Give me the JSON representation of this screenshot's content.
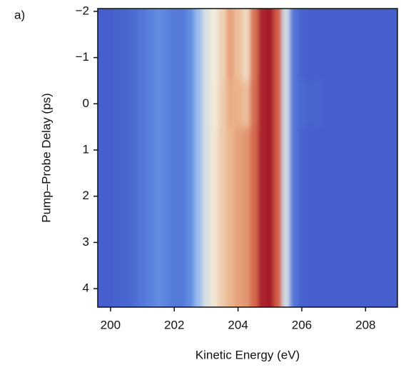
{
  "chart_data": {
    "type": "heatmap",
    "panel_label": "a)",
    "xlabel": "Kinetic Energy (eV)",
    "ylabel": "Pump–Probe Delay (ps)",
    "x": [
      199.75,
      200,
      200.25,
      200.5,
      200.75,
      201,
      201.25,
      201.5,
      201.75,
      202,
      202.25,
      202.5,
      202.75,
      203,
      203.25,
      203.5,
      203.75,
      204,
      204.25,
      204.5,
      204.75,
      205,
      205.25,
      205.5,
      205.75,
      206,
      206.25,
      206.5,
      206.75,
      207,
      207.25,
      207.5,
      207.75,
      208,
      208.25,
      208.5,
      208.75,
      209
    ],
    "y": [
      -2,
      -1,
      0,
      1,
      2,
      3,
      4
    ],
    "values": [
      [
        0.05,
        0.05,
        0.06,
        0.07,
        0.09,
        0.12,
        0.15,
        0.18,
        0.16,
        0.13,
        0.13,
        0.18,
        0.3,
        0.44,
        0.5,
        0.58,
        0.7,
        0.64,
        0.56,
        0.78,
        0.96,
        0.98,
        0.82,
        0.42,
        0.12,
        0.06,
        0.05,
        0.05,
        0.05,
        0.05,
        0.05,
        0.05,
        0.05,
        0.05,
        0.05,
        0.05,
        0.05,
        0.05
      ],
      [
        0.05,
        0.05,
        0.06,
        0.07,
        0.09,
        0.12,
        0.15,
        0.18,
        0.16,
        0.13,
        0.13,
        0.18,
        0.3,
        0.44,
        0.5,
        0.58,
        0.7,
        0.64,
        0.56,
        0.78,
        0.96,
        0.98,
        0.82,
        0.42,
        0.12,
        0.06,
        0.05,
        0.05,
        0.05,
        0.05,
        0.05,
        0.05,
        0.05,
        0.05,
        0.05,
        0.05,
        0.05,
        0.05
      ],
      [
        0.05,
        0.05,
        0.06,
        0.07,
        0.09,
        0.12,
        0.15,
        0.18,
        0.16,
        0.13,
        0.13,
        0.18,
        0.3,
        0.44,
        0.51,
        0.59,
        0.68,
        0.67,
        0.64,
        0.79,
        0.96,
        0.98,
        0.82,
        0.42,
        0.12,
        0.08,
        0.06,
        0.07,
        0.05,
        0.05,
        0.05,
        0.05,
        0.05,
        0.05,
        0.05,
        0.05,
        0.05,
        0.05
      ],
      [
        0.05,
        0.05,
        0.06,
        0.07,
        0.09,
        0.12,
        0.15,
        0.18,
        0.16,
        0.13,
        0.13,
        0.18,
        0.3,
        0.44,
        0.52,
        0.6,
        0.66,
        0.7,
        0.72,
        0.8,
        0.96,
        0.98,
        0.82,
        0.42,
        0.12,
        0.06,
        0.05,
        0.05,
        0.05,
        0.05,
        0.05,
        0.05,
        0.05,
        0.05,
        0.05,
        0.05,
        0.05,
        0.05
      ],
      [
        0.05,
        0.05,
        0.06,
        0.07,
        0.09,
        0.12,
        0.15,
        0.18,
        0.16,
        0.13,
        0.13,
        0.18,
        0.3,
        0.44,
        0.52,
        0.6,
        0.66,
        0.7,
        0.72,
        0.8,
        0.96,
        0.98,
        0.82,
        0.42,
        0.12,
        0.06,
        0.05,
        0.05,
        0.05,
        0.05,
        0.05,
        0.05,
        0.05,
        0.05,
        0.05,
        0.05,
        0.05,
        0.05
      ],
      [
        0.05,
        0.05,
        0.06,
        0.07,
        0.09,
        0.12,
        0.15,
        0.18,
        0.16,
        0.13,
        0.13,
        0.18,
        0.3,
        0.44,
        0.52,
        0.6,
        0.66,
        0.7,
        0.72,
        0.8,
        0.96,
        0.98,
        0.82,
        0.42,
        0.12,
        0.06,
        0.05,
        0.05,
        0.05,
        0.05,
        0.05,
        0.05,
        0.05,
        0.05,
        0.05,
        0.05,
        0.05,
        0.05
      ],
      [
        0.05,
        0.05,
        0.06,
        0.07,
        0.09,
        0.12,
        0.15,
        0.18,
        0.16,
        0.13,
        0.13,
        0.18,
        0.3,
        0.44,
        0.52,
        0.6,
        0.66,
        0.7,
        0.72,
        0.8,
        0.96,
        0.98,
        0.82,
        0.42,
        0.12,
        0.06,
        0.05,
        0.05,
        0.05,
        0.05,
        0.05,
        0.05,
        0.05,
        0.05,
        0.05,
        0.05,
        0.05,
        0.05
      ]
    ],
    "colormap": [
      "#3a4fc4",
      "#5d86e0",
      "#a9cbef",
      "#f3ecdc",
      "#ebb58c",
      "#d0553e",
      "#a0152a"
    ],
    "xlim": [
      199.6,
      209
    ],
    "xticks": [
      200,
      202,
      204,
      206,
      208
    ],
    "ylim": [
      -2.06,
      4.4
    ],
    "yticks": [
      {
        "value": -2,
        "label": "−2"
      },
      {
        "value": -1,
        "label": "−1"
      },
      0,
      1,
      2,
      3,
      4
    ],
    "y_inverted": true
  }
}
